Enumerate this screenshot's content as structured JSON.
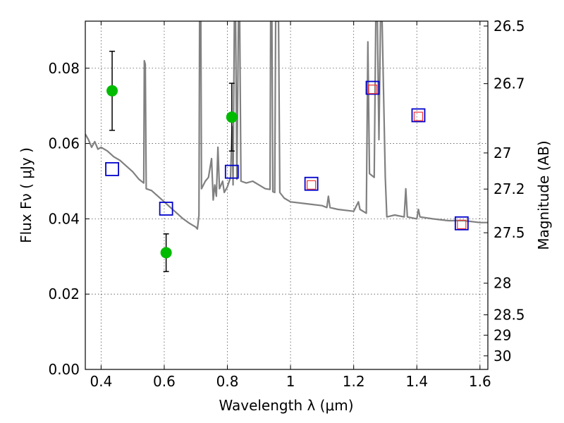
{
  "chart_data": {
    "type": "scatter",
    "title": "",
    "xlabel": "Wavelength  λ (μm)",
    "ylabel": "Flux  Fν  ( μJy )",
    "y2label": "Magnitude (AB)",
    "xlim": [
      0.35,
      1.625
    ],
    "ylim": [
      0.0,
      0.0925
    ],
    "grid": true,
    "x_ticks": [
      {
        "value": 0.4,
        "label": "0.4"
      },
      {
        "value": 0.6,
        "label": "0.6"
      },
      {
        "value": 0.8,
        "label": "0.8"
      },
      {
        "value": 1.0,
        "label": "1"
      },
      {
        "value": 1.2,
        "label": "1.2"
      },
      {
        "value": 1.4,
        "label": "1.4"
      },
      {
        "value": 1.6,
        "label": "1.6"
      }
    ],
    "y_ticks": [
      {
        "value": 0.0,
        "label": "0.00"
      },
      {
        "value": 0.02,
        "label": "0.02"
      },
      {
        "value": 0.04,
        "label": "0.04"
      },
      {
        "value": 0.06,
        "label": "0.06"
      },
      {
        "value": 0.08,
        "label": "0.08"
      }
    ],
    "y2_ticks": [
      {
        "flux": 0.0912,
        "label": "26.5"
      },
      {
        "flux": 0.0759,
        "label": "26.7"
      },
      {
        "flux": 0.0575,
        "label": "27"
      },
      {
        "flux": 0.0479,
        "label": "27.2"
      },
      {
        "flux": 0.0363,
        "label": "27.5"
      },
      {
        "flux": 0.0229,
        "label": "28"
      },
      {
        "flux": 0.0145,
        "label": "28.5"
      },
      {
        "flux": 0.0091,
        "label": "29"
      },
      {
        "flux": 0.0036,
        "label": "30"
      }
    ],
    "series": [
      {
        "kind": "line",
        "color": "#808080",
        "points": [
          [
            0.35,
            0.0625
          ],
          [
            0.36,
            0.061
          ],
          [
            0.37,
            0.059
          ],
          [
            0.38,
            0.0605
          ],
          [
            0.39,
            0.0585
          ],
          [
            0.4,
            0.059
          ],
          [
            0.42,
            0.058
          ],
          [
            0.44,
            0.0565
          ],
          [
            0.46,
            0.0555
          ],
          [
            0.48,
            0.054
          ],
          [
            0.5,
            0.0525
          ],
          [
            0.52,
            0.0505
          ],
          [
            0.535,
            0.0495
          ],
          [
            0.537,
            0.082
          ],
          [
            0.54,
            0.081
          ],
          [
            0.543,
            0.048
          ],
          [
            0.56,
            0.0475
          ],
          [
            0.58,
            0.046
          ],
          [
            0.6,
            0.0445
          ],
          [
            0.62,
            0.043
          ],
          [
            0.64,
            0.0415
          ],
          [
            0.66,
            0.04
          ],
          [
            0.68,
            0.0388
          ],
          [
            0.7,
            0.0378
          ],
          [
            0.705,
            0.0373
          ],
          [
            0.71,
            0.041
          ],
          [
            0.712,
            0.0925
          ],
          [
            0.716,
            0.0925
          ],
          [
            0.718,
            0.048
          ],
          [
            0.73,
            0.05
          ],
          [
            0.74,
            0.051
          ],
          [
            0.75,
            0.056
          ],
          [
            0.755,
            0.045
          ],
          [
            0.76,
            0.049
          ],
          [
            0.765,
            0.046
          ],
          [
            0.77,
            0.059
          ],
          [
            0.775,
            0.048
          ],
          [
            0.785,
            0.05
          ],
          [
            0.79,
            0.047
          ],
          [
            0.8,
            0.0485
          ],
          [
            0.81,
            0.051
          ],
          [
            0.815,
            0.0645
          ],
          [
            0.818,
            0.049
          ],
          [
            0.822,
            0.0925
          ],
          [
            0.826,
            0.0925
          ],
          [
            0.83,
            0.0505
          ],
          [
            0.835,
            0.0925
          ],
          [
            0.839,
            0.0925
          ],
          [
            0.843,
            0.05
          ],
          [
            0.86,
            0.0495
          ],
          [
            0.88,
            0.05
          ],
          [
            0.9,
            0.049
          ],
          [
            0.92,
            0.048
          ],
          [
            0.935,
            0.0478
          ],
          [
            0.937,
            0.0925
          ],
          [
            0.941,
            0.0925
          ],
          [
            0.944,
            0.0472
          ],
          [
            0.95,
            0.047
          ],
          [
            0.953,
            0.0925
          ],
          [
            0.962,
            0.0925
          ],
          [
            0.966,
            0.047
          ],
          [
            0.98,
            0.0455
          ],
          [
            1.0,
            0.0445
          ],
          [
            1.05,
            0.044
          ],
          [
            1.1,
            0.0435
          ],
          [
            1.115,
            0.043
          ],
          [
            1.12,
            0.046
          ],
          [
            1.125,
            0.043
          ],
          [
            1.15,
            0.0425
          ],
          [
            1.2,
            0.042
          ],
          [
            1.215,
            0.0445
          ],
          [
            1.22,
            0.0425
          ],
          [
            1.24,
            0.0415
          ],
          [
            1.245,
            0.087
          ],
          [
            1.25,
            0.052
          ],
          [
            1.265,
            0.051
          ],
          [
            1.27,
            0.0925
          ],
          [
            1.275,
            0.0925
          ],
          [
            1.28,
            0.061
          ],
          [
            1.285,
            0.0925
          ],
          [
            1.29,
            0.0925
          ],
          [
            1.3,
            0.051
          ],
          [
            1.305,
            0.0405
          ],
          [
            1.33,
            0.041
          ],
          [
            1.36,
            0.0405
          ],
          [
            1.365,
            0.048
          ],
          [
            1.37,
            0.0405
          ],
          [
            1.4,
            0.04
          ],
          [
            1.405,
            0.0425
          ],
          [
            1.41,
            0.0405
          ],
          [
            1.45,
            0.04
          ],
          [
            1.5,
            0.0395
          ],
          [
            1.55,
            0.0395
          ],
          [
            1.6,
            0.039
          ],
          [
            1.625,
            0.039
          ]
        ]
      },
      {
        "kind": "points-with-error",
        "color": "#00bb00",
        "points": [
          {
            "x": 0.435,
            "y": 0.074,
            "err": 0.0105
          },
          {
            "x": 0.606,
            "y": 0.031,
            "err": 0.005
          },
          {
            "x": 0.814,
            "y": 0.067,
            "err": 0.009
          }
        ]
      },
      {
        "kind": "square",
        "color": "#0000cc",
        "points": [
          [
            0.435,
            0.0532
          ],
          [
            0.606,
            0.0427
          ],
          [
            0.814,
            0.0525
          ],
          [
            1.066,
            0.0493
          ],
          [
            1.26,
            0.0748
          ],
          [
            1.405,
            0.0675
          ],
          [
            1.542,
            0.0388
          ]
        ]
      },
      {
        "kind": "square",
        "color": "#ee3333",
        "points": [
          [
            1.066,
            0.049
          ],
          [
            1.26,
            0.0744
          ],
          [
            1.405,
            0.0672
          ],
          [
            1.542,
            0.0385
          ]
        ]
      }
    ]
  }
}
